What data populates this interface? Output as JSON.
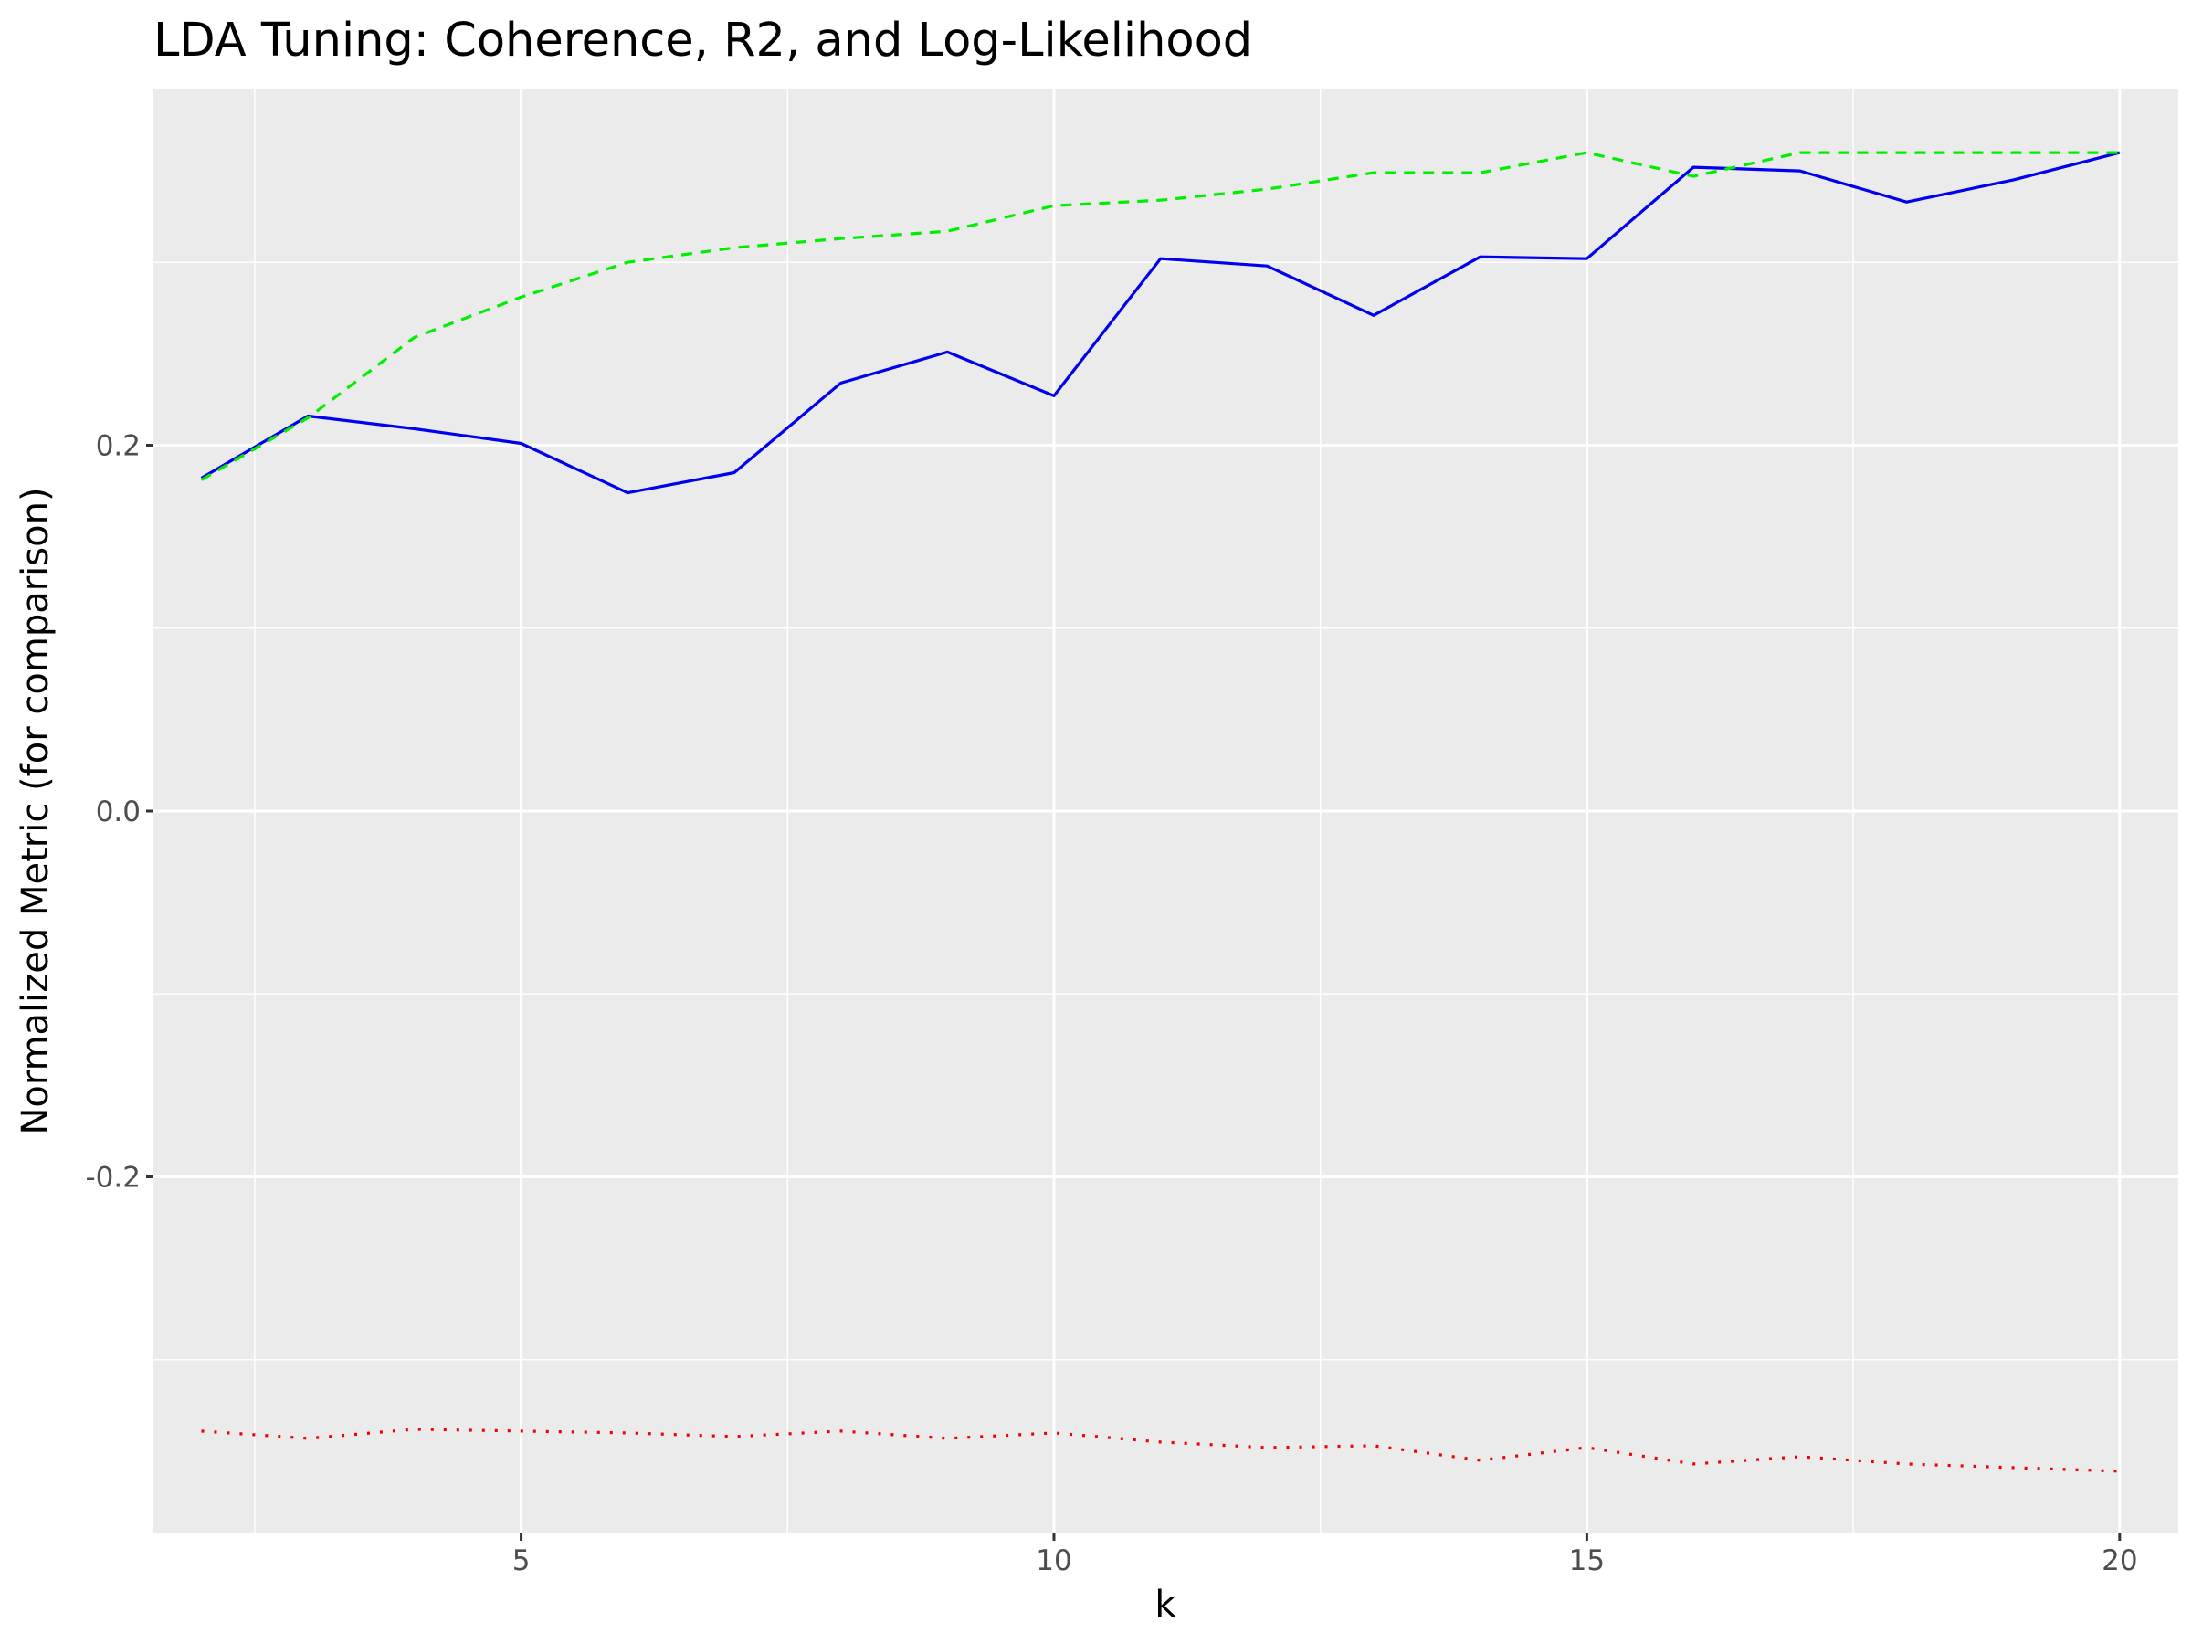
{
  "chart_data": {
    "type": "line",
    "title": "LDA Tuning: Coherence, R2, and Log-Likelihood",
    "xlabel": "k",
    "ylabel": "Normalized Metric (for comparison)",
    "xlim": [
      1.55,
      20.55
    ],
    "ylim": [
      -0.395,
      0.395
    ],
    "x_ticks": [
      5,
      10,
      15,
      20
    ],
    "y_ticks": [
      -0.2,
      0.0,
      0.2
    ],
    "y_tick_labels": [
      "-0.2",
      "0.0",
      "0.2"
    ],
    "grid": true,
    "legend": "none",
    "x": [
      2,
      3,
      4,
      5,
      6,
      7,
      8,
      9,
      10,
      11,
      12,
      13,
      14,
      15,
      16,
      17,
      18,
      19,
      20
    ],
    "series": [
      {
        "color": "#0000ee",
        "style": "solid",
        "values": [
          0.182,
          0.216,
          0.209,
          0.201,
          0.174,
          0.185,
          0.234,
          0.251,
          0.227,
          0.302,
          0.298,
          0.271,
          0.303,
          0.302,
          0.352,
          0.35,
          0.333,
          0.345,
          0.36
        ]
      },
      {
        "color": "#00ee00",
        "style": "dashed",
        "values": [
          0.181,
          0.215,
          0.259,
          0.281,
          0.3,
          0.308,
          0.313,
          0.317,
          0.331,
          0.334,
          0.34,
          0.349,
          0.349,
          0.36,
          0.347,
          0.36,
          0.36,
          0.36,
          0.36
        ]
      },
      {
        "color": "#ee0000",
        "style": "dotted",
        "values": [
          -0.339,
          -0.343,
          -0.338,
          -0.339,
          -0.34,
          -0.342,
          -0.339,
          -0.343,
          -0.34,
          -0.345,
          -0.348,
          -0.347,
          -0.355,
          -0.348,
          -0.357,
          -0.353,
          -0.357,
          -0.359,
          -0.361
        ]
      }
    ]
  }
}
